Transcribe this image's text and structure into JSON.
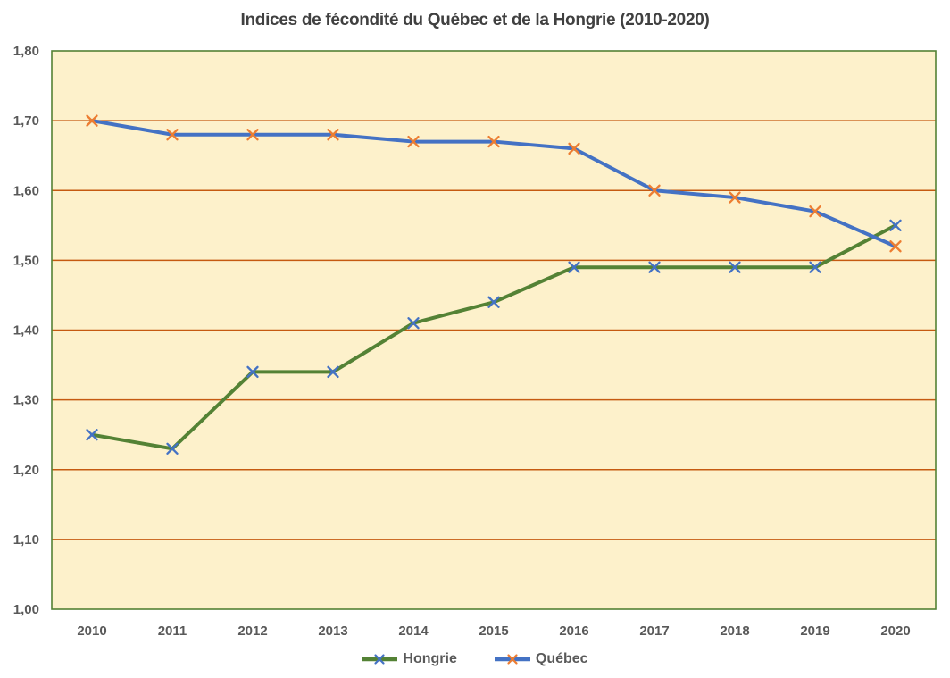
{
  "title": "Indices de fécondité du Québec et de la Hongrie (2010-2020)",
  "chart_data": {
    "type": "line",
    "title": "Indices de fécondité du Québec et de la Hongrie (2010-2020)",
    "xlabel": "",
    "ylabel": "",
    "categories": [
      "2010",
      "2011",
      "2012",
      "2013",
      "2014",
      "2015",
      "2016",
      "2017",
      "2018",
      "2019",
      "2020"
    ],
    "series": [
      {
        "name": "Hongrie",
        "values": [
          1.25,
          1.23,
          1.34,
          1.34,
          1.41,
          1.44,
          1.49,
          1.49,
          1.49,
          1.49,
          1.55
        ],
        "line_color": "#548235",
        "marker_color": "#4472C4",
        "marker": "x"
      },
      {
        "name": "Québec",
        "values": [
          1.7,
          1.68,
          1.68,
          1.68,
          1.67,
          1.67,
          1.66,
          1.6,
          1.59,
          1.57,
          1.52
        ],
        "line_color": "#4472C4",
        "marker_color": "#ED7D31",
        "marker": "x"
      }
    ],
    "ylim": [
      1.0,
      1.8
    ],
    "y_ticks": [
      {
        "label": "1,80",
        "value": 1.8
      },
      {
        "label": "1,70",
        "value": 1.7
      },
      {
        "label": "1,60",
        "value": 1.6
      },
      {
        "label": "1,50",
        "value": 1.5
      },
      {
        "label": "1,40",
        "value": 1.4
      },
      {
        "label": "1,30",
        "value": 1.3
      },
      {
        "label": "1,20",
        "value": 1.2
      },
      {
        "label": "1,10",
        "value": 1.1
      },
      {
        "label": "1,00",
        "value": 1.0
      }
    ],
    "grid": "horizontal",
    "legend_position": "bottom",
    "colors": {
      "plot_background": "#FDF1CB",
      "gridline": "#C55A11",
      "plot_border": "#548235",
      "axis_text": "#595959",
      "title_text": "#404040"
    }
  }
}
